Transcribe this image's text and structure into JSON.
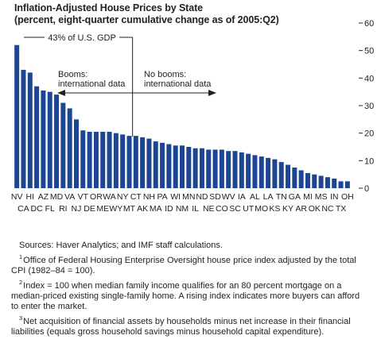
{
  "chart_data": {
    "type": "bar",
    "title": "Inflation-Adjusted House Prices by State",
    "subtitle": "(percent, eight-quarter cumulative change as of 2005:Q2)",
    "categories": [
      "NV",
      "CA",
      "HI",
      "DC",
      "AZ",
      "FL",
      "MD",
      "RI",
      "VA",
      "NJ",
      "VT",
      "DE",
      "OR",
      "ME",
      "WA",
      "WY",
      "NY",
      "MT",
      "CT",
      "AK",
      "NH",
      "MA",
      "PA",
      "ID",
      "WI",
      "NM",
      "MN",
      "IL",
      "ND",
      "NE",
      "SD",
      "CO",
      "WV",
      "SC",
      "IA",
      "UT",
      "AL",
      "MO",
      "LA",
      "KS",
      "TN",
      "KY",
      "GA",
      "AR",
      "MI",
      "OK",
      "MS",
      "NC",
      "IN",
      "TX",
      "OH"
    ],
    "values": [
      52,
      43,
      42,
      37,
      35.5,
      35,
      34,
      31,
      29,
      25,
      21,
      20.5,
      20.5,
      20.5,
      20.5,
      20,
      19.5,
      19,
      19,
      18.5,
      18,
      17,
      16.5,
      16,
      15.5,
      15.5,
      15,
      14.5,
      14.5,
      14,
      14,
      14,
      13.5,
      13.5,
      13,
      12.5,
      12,
      11.5,
      11,
      10.5,
      9.5,
      8.5,
      7.5,
      6.5,
      5.5,
      5,
      4.5,
      4,
      3.5,
      2.5,
      2.5
    ],
    "ylim": [
      0,
      60
    ],
    "yticks": [
      0,
      10,
      20,
      30,
      40,
      50,
      60
    ],
    "x_labels_row1": [
      "NV",
      "HI",
      "AZ",
      "MD",
      "VA",
      "VT",
      "OR",
      "WA",
      "NY",
      "CT",
      "NH",
      "PA",
      "WI",
      "MN",
      "ND",
      "SD",
      "WV",
      "IA",
      "AL",
      "LA",
      "TN",
      "GA",
      "MI",
      "MS",
      "IN",
      "OH"
    ],
    "x_labels_row2": [
      "CA",
      "DC",
      "FL",
      "RI",
      "NJ",
      "DE",
      "ME",
      "WY",
      "MT",
      "AK",
      "MA",
      "ID",
      "NM",
      "IL",
      "NE",
      "CO",
      "SC",
      "UT",
      "MO",
      "KS",
      "KY",
      "AR",
      "OK",
      "NC",
      "TX"
    ],
    "divider_after_category": "MT",
    "annotations": {
      "gdp_share": "43% of U.S. GDP",
      "booms_line1": "Booms:",
      "booms_line2": "international data",
      "no_booms_line1": "No booms:",
      "no_booms_line2": "international data"
    },
    "bar_color": "#1c4592",
    "grid": false,
    "legend": "none"
  },
  "notes": {
    "source": "Sources: Haver Analytics; and IMF staff calculations.",
    "footnotes": [
      {
        "marker": "1",
        "text": "Office of Federal Housing Enterprise Oversight house price index adjusted by the total",
        "continuation": "CPI (1982–84 = 100)."
      },
      {
        "marker": "2",
        "text": "Index = 100 when median family income qualifies for an 80 percent mortgage on a",
        "continuation": "median-priced existing single-family home. A rising index indicates more buyers can afford",
        "continuation2": "to enter the market."
      },
      {
        "marker": "3",
        "text": "Net acquisition of financial assets by households minus net increase in their financial",
        "continuation": "liabilities (equals gross household savings minus household capital expenditure)."
      }
    ]
  }
}
